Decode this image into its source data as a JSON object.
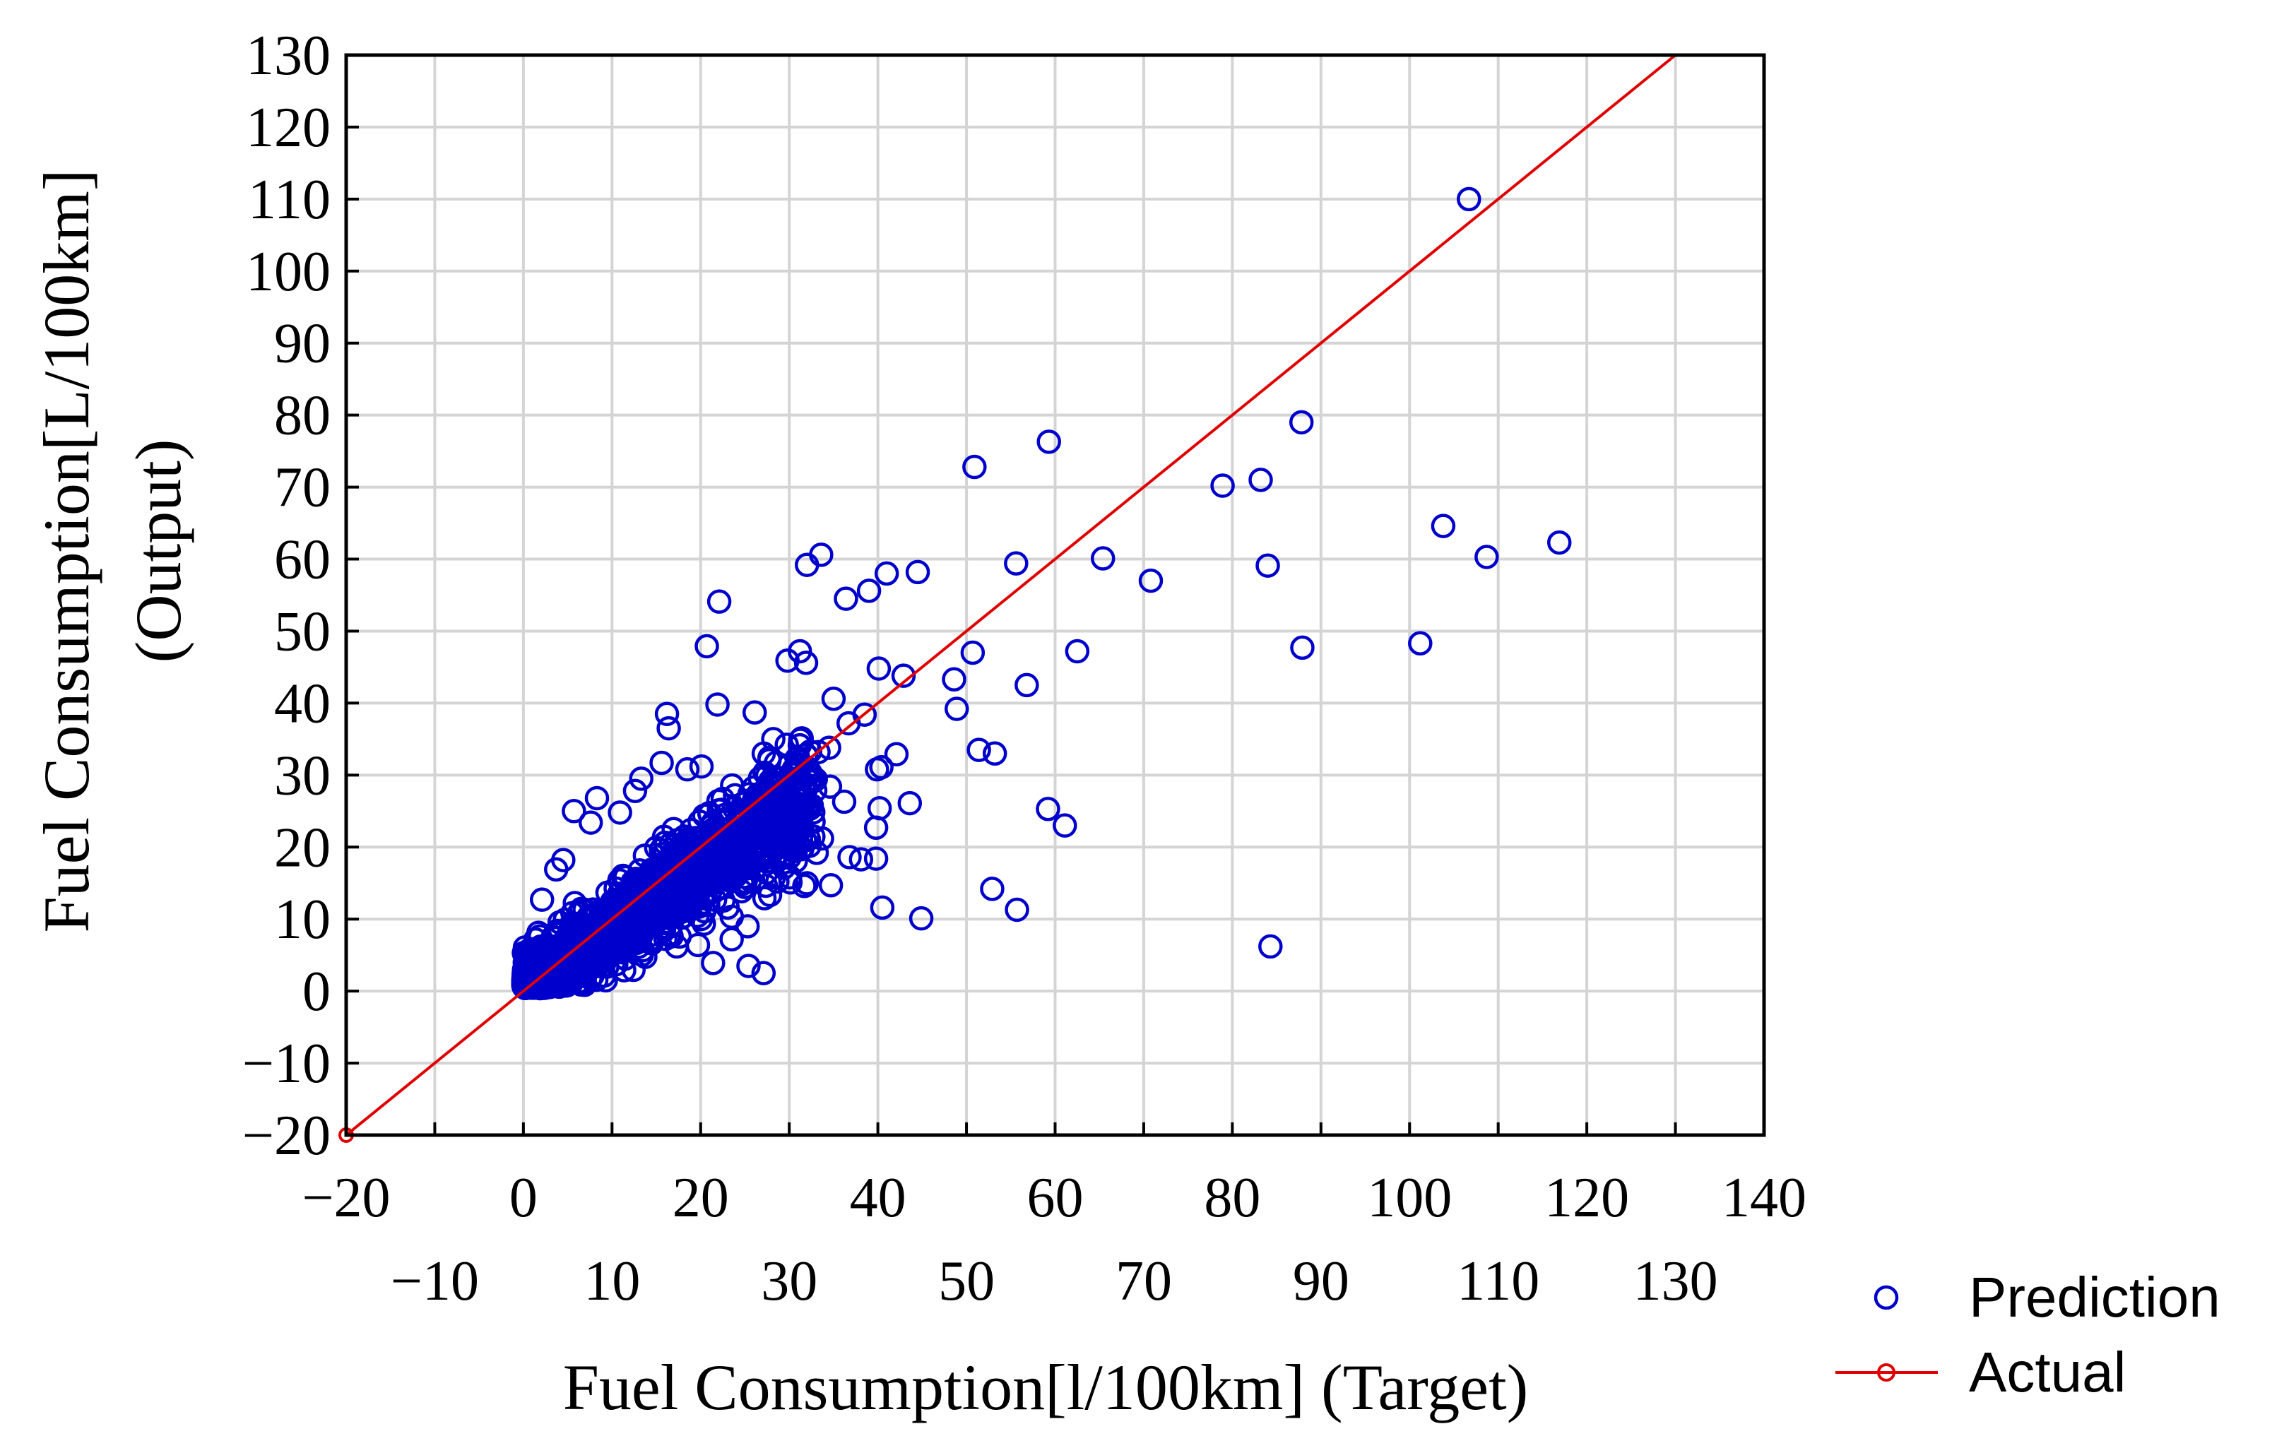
{
  "chart_data": {
    "type": "scatter",
    "title": "",
    "xlabel": "Fuel Consumption[l/100km] (Target)",
    "ylabel_line1": "Fuel Consumption[L/100km]",
    "ylabel_line2": "(Output)",
    "xlim": [
      -20,
      140
    ],
    "ylim": [
      -20,
      130
    ],
    "grid": true,
    "x_ticks_upper": [
      "−20",
      "0",
      "20",
      "40",
      "60",
      "80",
      "100",
      "120",
      "140"
    ],
    "x_ticks_upper_values": [
      -20,
      0,
      20,
      40,
      60,
      80,
      100,
      120,
      140
    ],
    "x_ticks_lower": [
      "−10",
      "10",
      "30",
      "50",
      "70",
      "90",
      "110",
      "130"
    ],
    "x_ticks_lower_values": [
      -10,
      10,
      30,
      50,
      70,
      90,
      110,
      130
    ],
    "y_ticks": [
      "−20",
      "−10",
      "0",
      "10",
      "20",
      "30",
      "40",
      "50",
      "60",
      "70",
      "80",
      "90",
      "100",
      "110",
      "120",
      "130"
    ],
    "y_ticks_values": [
      -20,
      -10,
      0,
      10,
      20,
      30,
      40,
      50,
      60,
      70,
      80,
      90,
      100,
      110,
      120,
      130
    ],
    "legend_position": "bottom-right",
    "legend": [
      {
        "label": "Prediction",
        "marker": "circle",
        "color": "#0000cc"
      },
      {
        "label": "Actual",
        "marker": "line-circle",
        "color": "#e00000"
      }
    ],
    "series": [
      {
        "name": "Actual",
        "type": "line",
        "color": "#e00000",
        "x": [
          -20,
          130
        ],
        "y": [
          -20,
          130
        ]
      },
      {
        "name": "Prediction",
        "type": "scatter",
        "color": "#0000cc",
        "cluster": {
          "count": 1400,
          "x_range": [
            0,
            33
          ],
          "slope": 0.82,
          "spread": 2.6,
          "seed": 7
        },
        "points": [
          [
            106.7,
            110
          ],
          [
            87.8,
            79
          ],
          [
            59.3,
            76.3
          ],
          [
            50.9,
            72.8
          ],
          [
            83.2,
            71
          ],
          [
            78.9,
            70.2
          ],
          [
            103.8,
            64.6
          ],
          [
            65.4,
            60.1
          ],
          [
            108.7,
            60.3
          ],
          [
            116.9,
            62.3
          ],
          [
            55.6,
            59.4
          ],
          [
            84,
            59.1
          ],
          [
            33.6,
            60.6
          ],
          [
            32,
            59.2
          ],
          [
            41,
            58
          ],
          [
            44.5,
            58.2
          ],
          [
            39,
            55.6
          ],
          [
            36.4,
            54.5
          ],
          [
            70.8,
            57
          ],
          [
            22.1,
            54.1
          ],
          [
            87.9,
            47.7
          ],
          [
            101.2,
            48.3
          ],
          [
            62.5,
            47.2
          ],
          [
            50.7,
            47
          ],
          [
            20.7,
            47.9
          ],
          [
            31.2,
            47.2
          ],
          [
            29.8,
            45.9
          ],
          [
            31.9,
            45.6
          ],
          [
            48.6,
            43.3
          ],
          [
            40.1,
            44.8
          ],
          [
            42.9,
            43.8
          ],
          [
            56.8,
            42.5
          ],
          [
            35,
            40.6
          ],
          [
            48.9,
            39.2
          ],
          [
            38.5,
            38.4
          ],
          [
            16.2,
            38.5
          ],
          [
            21.9,
            39.8
          ],
          [
            26.1,
            38.7
          ],
          [
            16.4,
            36.5
          ],
          [
            36.7,
            37.2
          ],
          [
            28.2,
            35
          ],
          [
            31.4,
            35.1
          ],
          [
            33.3,
            33.2
          ],
          [
            34.5,
            33.8
          ],
          [
            51.4,
            33.5
          ],
          [
            53.2,
            33
          ],
          [
            42.1,
            32.9
          ],
          [
            40.4,
            31.1
          ],
          [
            39.9,
            30.8
          ],
          [
            28.5,
            31.7
          ],
          [
            30.5,
            30.8
          ],
          [
            43.6,
            26.1
          ],
          [
            40.2,
            25.4
          ],
          [
            59.2,
            25.3
          ],
          [
            61.1,
            23
          ],
          [
            39.8,
            22.7
          ],
          [
            36.8,
            18.6
          ],
          [
            38.1,
            18.3
          ],
          [
            39.8,
            18.4
          ],
          [
            52.9,
            14.2
          ],
          [
            55.7,
            11.3
          ],
          [
            40.5,
            11.6
          ],
          [
            44.9,
            10.1
          ],
          [
            84.3,
            6.2
          ],
          [
            25.3,
            9
          ],
          [
            23.5,
            7.2
          ],
          [
            21.4,
            3.9
          ],
          [
            25.4,
            3.5
          ],
          [
            27.1,
            2.5
          ],
          [
            17.3,
            6.2
          ],
          [
            19.7,
            6.4
          ],
          [
            9.3,
            1.5
          ],
          [
            5.7,
            25
          ],
          [
            8.3,
            26.8
          ],
          [
            7.6,
            23.4
          ],
          [
            12.6,
            27.8
          ],
          [
            13.3,
            29.5
          ],
          [
            15.6,
            31.7
          ],
          [
            18.5,
            30.8
          ],
          [
            20.1,
            31.2
          ],
          [
            10.9,
            24.8
          ],
          [
            4.5,
            18.2
          ],
          [
            3.7,
            16.9
          ],
          [
            2.1,
            12.7
          ],
          [
            1.7,
            8.1
          ],
          [
            34.7,
            14.7
          ],
          [
            31.7,
            14.6
          ],
          [
            30.1,
            15.8
          ],
          [
            27.2,
            12.9
          ],
          [
            29.6,
            21.3
          ],
          [
            33.1,
            19.2
          ],
          [
            33.7,
            21.2
          ],
          [
            31.3,
            27.5
          ],
          [
            34.6,
            28.4
          ],
          [
            36.2,
            26.3
          ]
        ]
      }
    ]
  }
}
